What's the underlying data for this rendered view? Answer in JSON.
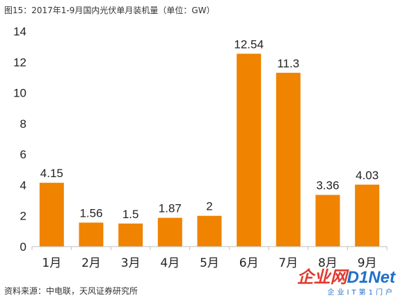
{
  "caption": "图15：2017年1-9月国内光伏单月装机量（单位：GW）",
  "source": "资料来源：中电联，天风证券研究所",
  "watermark": {
    "brand_cn": "企业网",
    "brand_en": "D1Net",
    "tagline": "企业IT第1门户"
  },
  "colors": {
    "bar": "#F08300",
    "axis": "#bfbfbf"
  },
  "chart_data": {
    "type": "bar",
    "categories": [
      "1月",
      "2月",
      "3月",
      "4月",
      "5月",
      "6月",
      "7月",
      "8月",
      "9月"
    ],
    "values": [
      4.15,
      1.56,
      1.5,
      1.87,
      2,
      12.54,
      11.3,
      3.36,
      4.03
    ],
    "data_labels": [
      "4.15",
      "1.56",
      "1.5",
      "1.87",
      "2",
      "12.54",
      "11.3",
      "3.36",
      "4.03"
    ],
    "ylim": [
      0,
      14
    ],
    "yticks": [
      0,
      2,
      4,
      6,
      8,
      10,
      12,
      14
    ],
    "grid": false,
    "legend": "none"
  }
}
